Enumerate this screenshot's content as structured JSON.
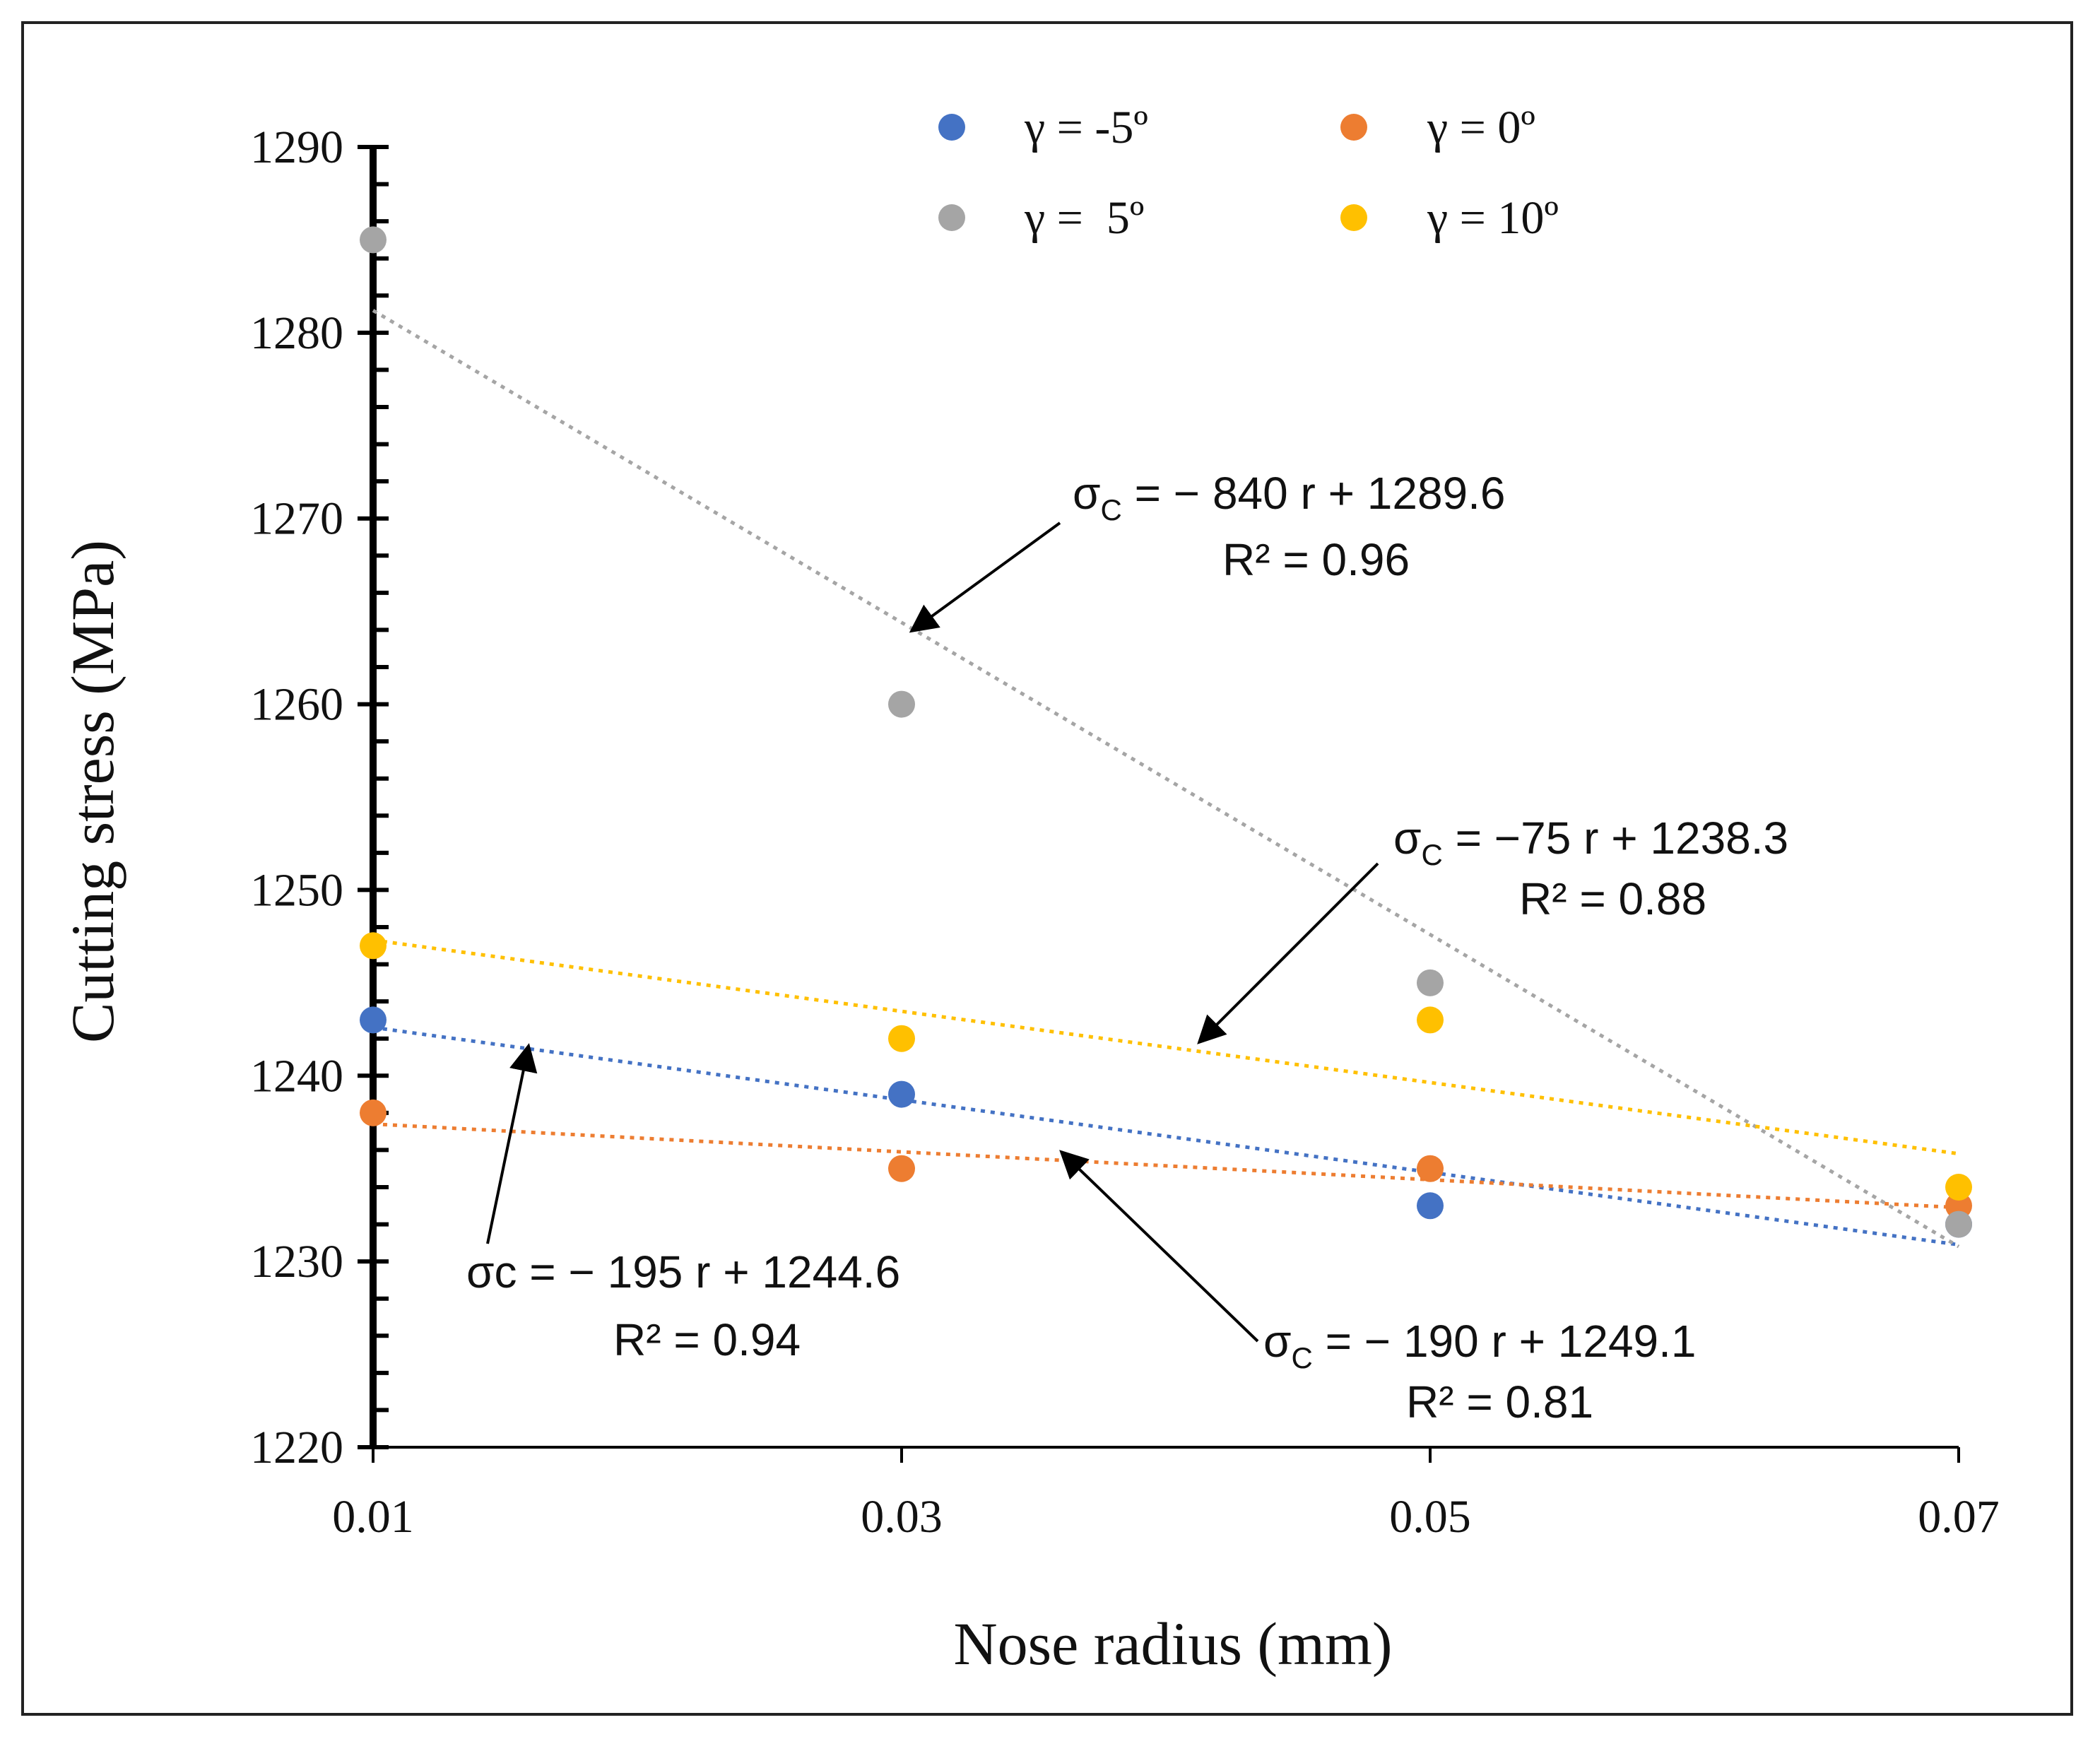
{
  "chart_data": {
    "type": "scatter",
    "xlabel": "Nose radius (mm)",
    "ylabel": "Cutting stress (MPa)",
    "xlim": [
      0.01,
      0.07
    ],
    "ylim": [
      1220,
      1290
    ],
    "xticks": [
      "0.01",
      "0.03",
      "0.05",
      "0.07"
    ],
    "xtick_values": [
      0.01,
      0.03,
      0.05,
      0.07
    ],
    "yticks": [
      "1220",
      "1230",
      "1240",
      "1250",
      "1260",
      "1270",
      "1280",
      "1290"
    ],
    "ytick_values": [
      1220,
      1230,
      1240,
      1250,
      1260,
      1270,
      1280,
      1290
    ],
    "legend_position": "top",
    "series": [
      {
        "name": "γ = -5º",
        "color": "#4472C4",
        "x": [
          0.01,
          0.03,
          0.05,
          0.07
        ],
        "y": [
          1243,
          1239,
          1233,
          1232
        ],
        "trend": [
          1242.6,
          1230.9
        ]
      },
      {
        "name": "γ = 0º",
        "color": "#ED7D31",
        "x": [
          0.01,
          0.03,
          0.05,
          0.07
        ],
        "y": [
          1238,
          1235,
          1235,
          1233
        ],
        "trend": [
          1237.4,
          1232.9
        ]
      },
      {
        "name": "γ =  5º",
        "color": "#A5A5A5",
        "x": [
          0.01,
          0.03,
          0.05,
          0.07
        ],
        "y": [
          1285,
          1260,
          1245,
          1232
        ],
        "trend": [
          1281.2,
          1230.8
        ]
      },
      {
        "name": "γ = 10º",
        "color": "#FFC000",
        "x": [
          0.01,
          0.03,
          0.05,
          0.07
        ],
        "y": [
          1247,
          1242,
          1243,
          1234
        ],
        "trend": [
          1247.3,
          1235.8
        ]
      }
    ],
    "annotations": [
      {
        "sigma": "σ",
        "sub": "C",
        "eq": " = − 840 r + 1289.6",
        "r2": "R² = 0.96"
      },
      {
        "sigma": "σ",
        "sub": "C",
        "eq": " = −75 r + 1238.3",
        "r2": "R² = 0.88"
      },
      {
        "sigma": "σ",
        "sub": "",
        "eq": "c = − 195 r + 1244.6",
        "r2": "R² = 0.94"
      },
      {
        "sigma": "σ",
        "sub": "C",
        "eq": " = − 190 r + 1249.1",
        "r2": "R² = 0.81"
      }
    ]
  }
}
